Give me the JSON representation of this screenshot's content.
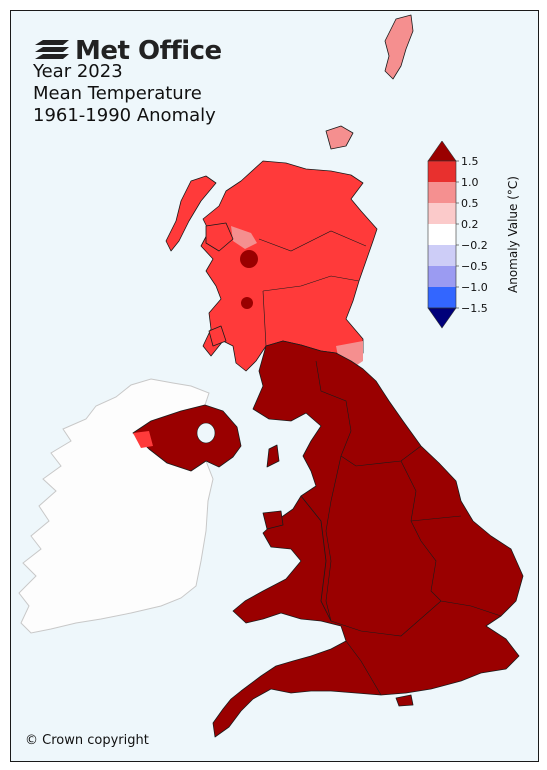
{
  "logo": {
    "text": "Met Office",
    "icon": "met-office-waves-icon"
  },
  "title": {
    "line1": "Year 2023",
    "line2": "Mean Temperature",
    "line3": "1961-1990 Anomaly"
  },
  "copyright": "© Crown copyright",
  "legend": {
    "label": "Anomaly Value (°C)",
    "ticks": [
      "1.5",
      "1.0",
      "0.5",
      "0.2",
      "−0.2",
      "−0.5",
      "−1.0",
      "−1.5"
    ],
    "bands": [
      {
        "color": "#e8302e"
      },
      {
        "color": "#f59090"
      },
      {
        "color": "#fbcaca"
      },
      {
        "color": "#ffffff"
      },
      {
        "color": "#cdcdf7"
      },
      {
        "color": "#9b9bf2"
      },
      {
        "color": "#3366ff"
      }
    ],
    "max_arrow_color": "#9a0000",
    "min_arrow_color": "#00007a"
  },
  "colors": {
    "ocean": "#eef7fb",
    "ireland": "#fdfdfd",
    "scotland": "#ff3a3a",
    "scotland_light": "#f58f8f",
    "england_wales": "#9a0000",
    "northern_ireland": "#9a0000"
  },
  "regions": [
    {
      "name": "Scotland",
      "anomaly_band": "1.0 to 1.5"
    },
    {
      "name": "Northern Ireland",
      "anomaly_band": "above 1.5"
    },
    {
      "name": "England",
      "anomaly_band": "above 1.5"
    },
    {
      "name": "Wales",
      "anomaly_band": "above 1.5"
    }
  ]
}
